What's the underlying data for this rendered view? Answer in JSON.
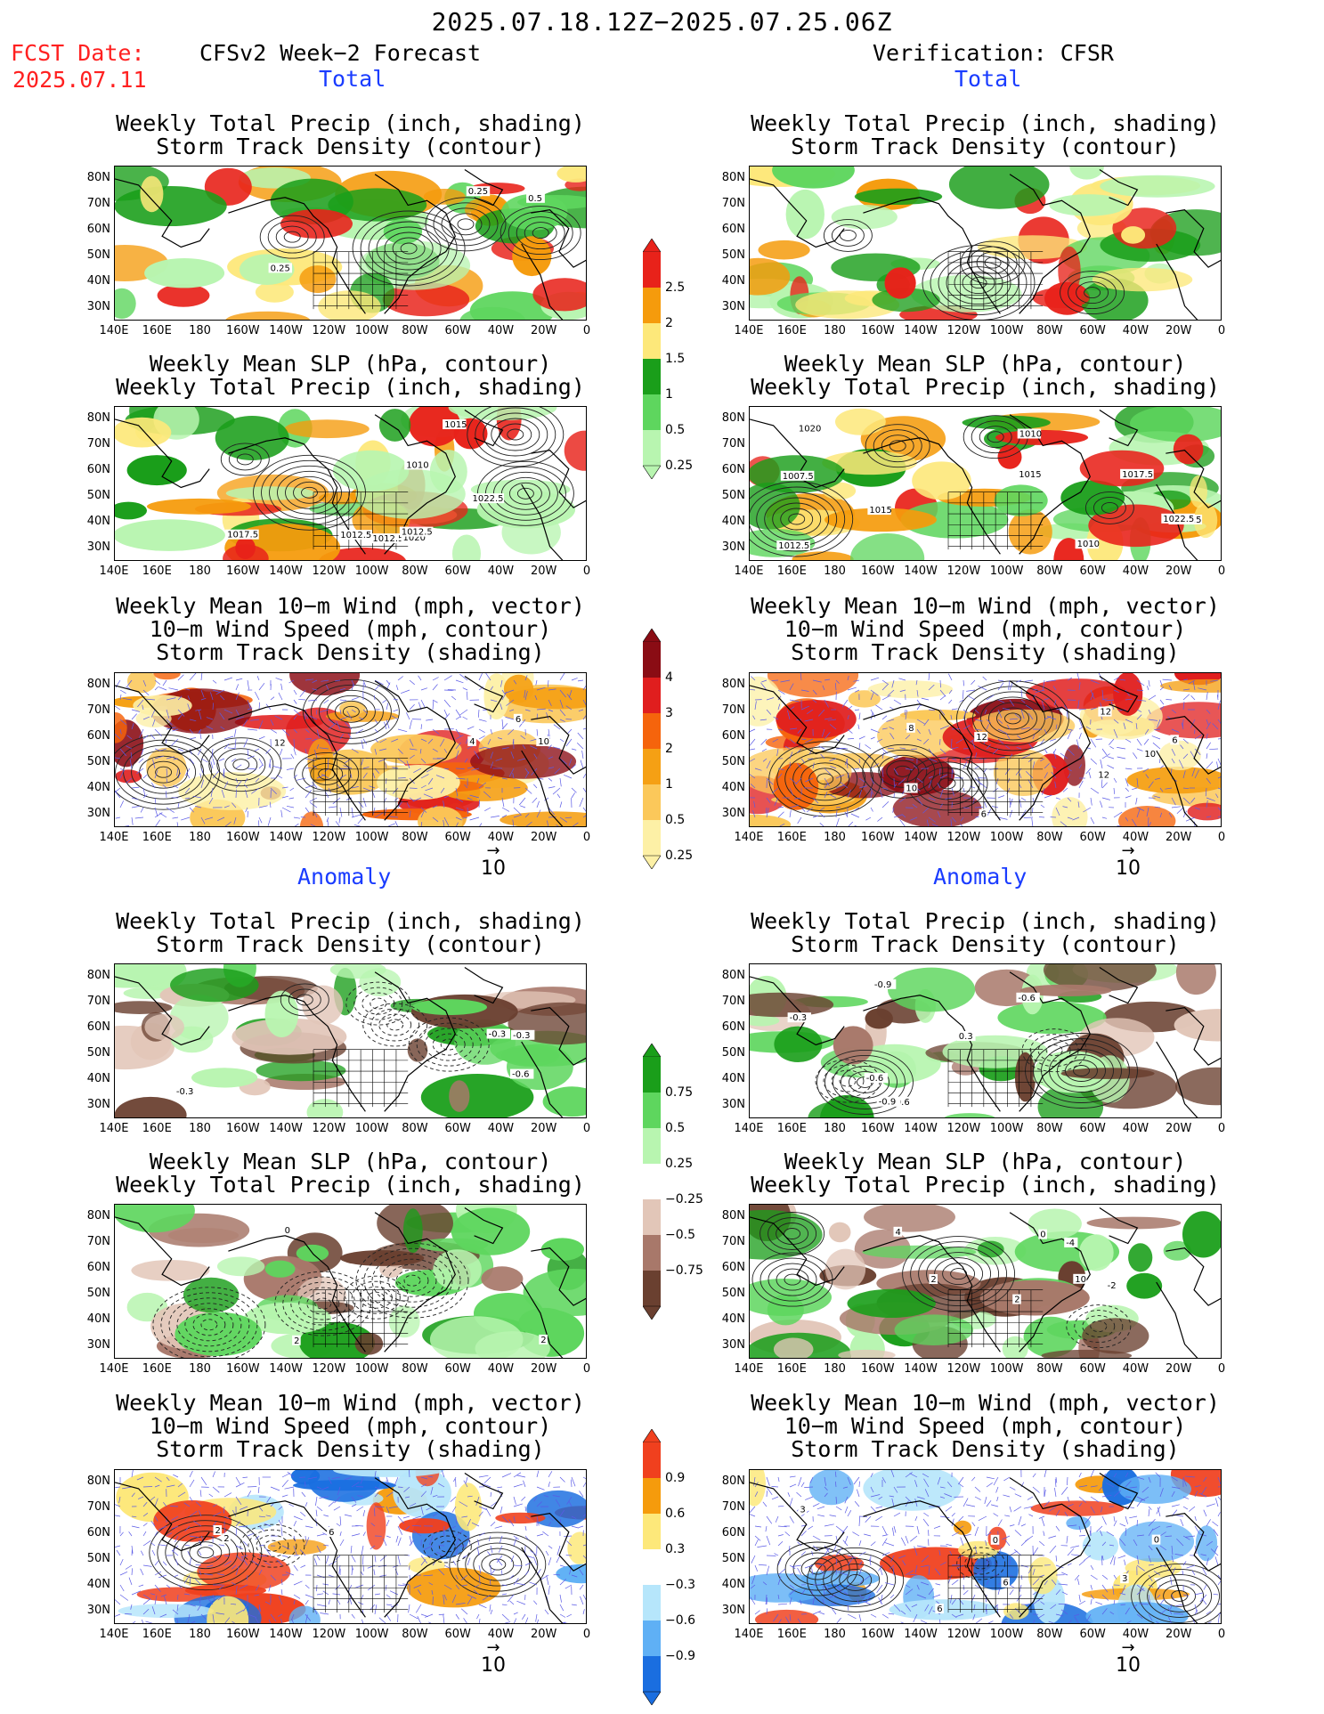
{
  "main_title": "2025.07.18.12Z−2025.07.25.06Z",
  "fcst_label": "FCST Date:",
  "fcst_date": "2025.07.11",
  "left_header": "CFSv2 Week−2 Forecast",
  "right_header": "Verification: CFSR",
  "section_total": "Total",
  "section_anomaly": "Anomaly",
  "titles": {
    "precip_storm": [
      "Weekly Total Precip (inch, shading)",
      "Storm Track Density (contour)"
    ],
    "slp_precip": [
      "Weekly Mean SLP (hPa, contour)",
      "Weekly Total Precip (inch, shading)"
    ],
    "wind": [
      "Weekly Mean 10−m Wind (mph, vector)",
      "10−m Wind Speed (mph, contour)",
      "Storm Track Density (shading)"
    ]
  },
  "lat_labels": [
    "80N",
    "70N",
    "60N",
    "50N",
    "40N",
    "30N"
  ],
  "lon_labels": [
    "140E",
    "160E",
    "180",
    "160W",
    "140W",
    "120W",
    "100W",
    "80W",
    "60W",
    "40W",
    "20W",
    "0"
  ],
  "vector_ref": "10",
  "colorbars": {
    "precip_total": {
      "labels": [
        "2.5",
        "2",
        "1.5",
        "1",
        "0.5",
        "0.25"
      ],
      "colors": [
        "#e8221a",
        "#f59b0c",
        "#fde87a",
        "#1a9e1a",
        "#5ed65e",
        "#b8f5b0"
      ]
    },
    "storm_total": {
      "labels": [
        "4",
        "3",
        "2",
        "1",
        "0.5",
        "0.25"
      ],
      "colors": [
        "#8a0c14",
        "#e01e1e",
        "#f5640c",
        "#f5a014",
        "#fbc85a",
        "#fdf0a6"
      ]
    },
    "precip_anom": {
      "labels": [
        "0.75",
        "0.5",
        "0.25",
        "−0.25",
        "−0.5",
        "−0.75"
      ],
      "colors": [
        "#1a9e1a",
        "#5ed65e",
        "#b8f5b0",
        "#ffffff",
        "#e2c6b8",
        "#a8786a",
        "#6a4030"
      ]
    },
    "storm_anom": {
      "labels": [
        "0.9",
        "0.6",
        "0.3",
        "−0.3",
        "−0.6",
        "−0.9"
      ],
      "colors": [
        "#f0401e",
        "#f59b0c",
        "#fde87a",
        "#ffffff",
        "#b6e6fb",
        "#5fb0f5",
        "#1a6ee0"
      ]
    }
  },
  "contour_labels": {
    "f_ps": [
      "0.25",
      "0.5",
      "0.25"
    ],
    "f_slp": [
      "1012.5",
      "1010",
      "1015",
      "1020",
      "1017.5",
      "1022.5",
      "1012.5",
      "1012.5"
    ],
    "f_wind": [
      "4",
      "10",
      "12",
      "6"
    ],
    "v_slp": [
      "1017.5",
      "1010",
      "1020",
      "1007.5",
      "1015",
      "1017.5",
      "1010",
      "1012.5",
      "1015",
      "1022.5"
    ],
    "v_wind": [
      "12",
      "6",
      "10",
      "12",
      "8",
      "10",
      "6",
      "12"
    ],
    "fa_ps": [
      "-0.6",
      "-0.3",
      "-0.3",
      "-0.3"
    ],
    "va_ps": [
      "-0.6",
      "-0.6",
      "-0.9",
      "-0.9",
      "0.3",
      "-0.6",
      "-0.3"
    ],
    "fa_slp": [
      "0",
      "2",
      "2"
    ],
    "va_slp": [
      "0",
      "10",
      "2",
      "4",
      "-2",
      "-4",
      "2"
    ],
    "fa_wind": [
      "2",
      "6",
      "2"
    ],
    "va_wind": [
      "6",
      "3",
      "3",
      "0",
      "6",
      "0"
    ]
  }
}
